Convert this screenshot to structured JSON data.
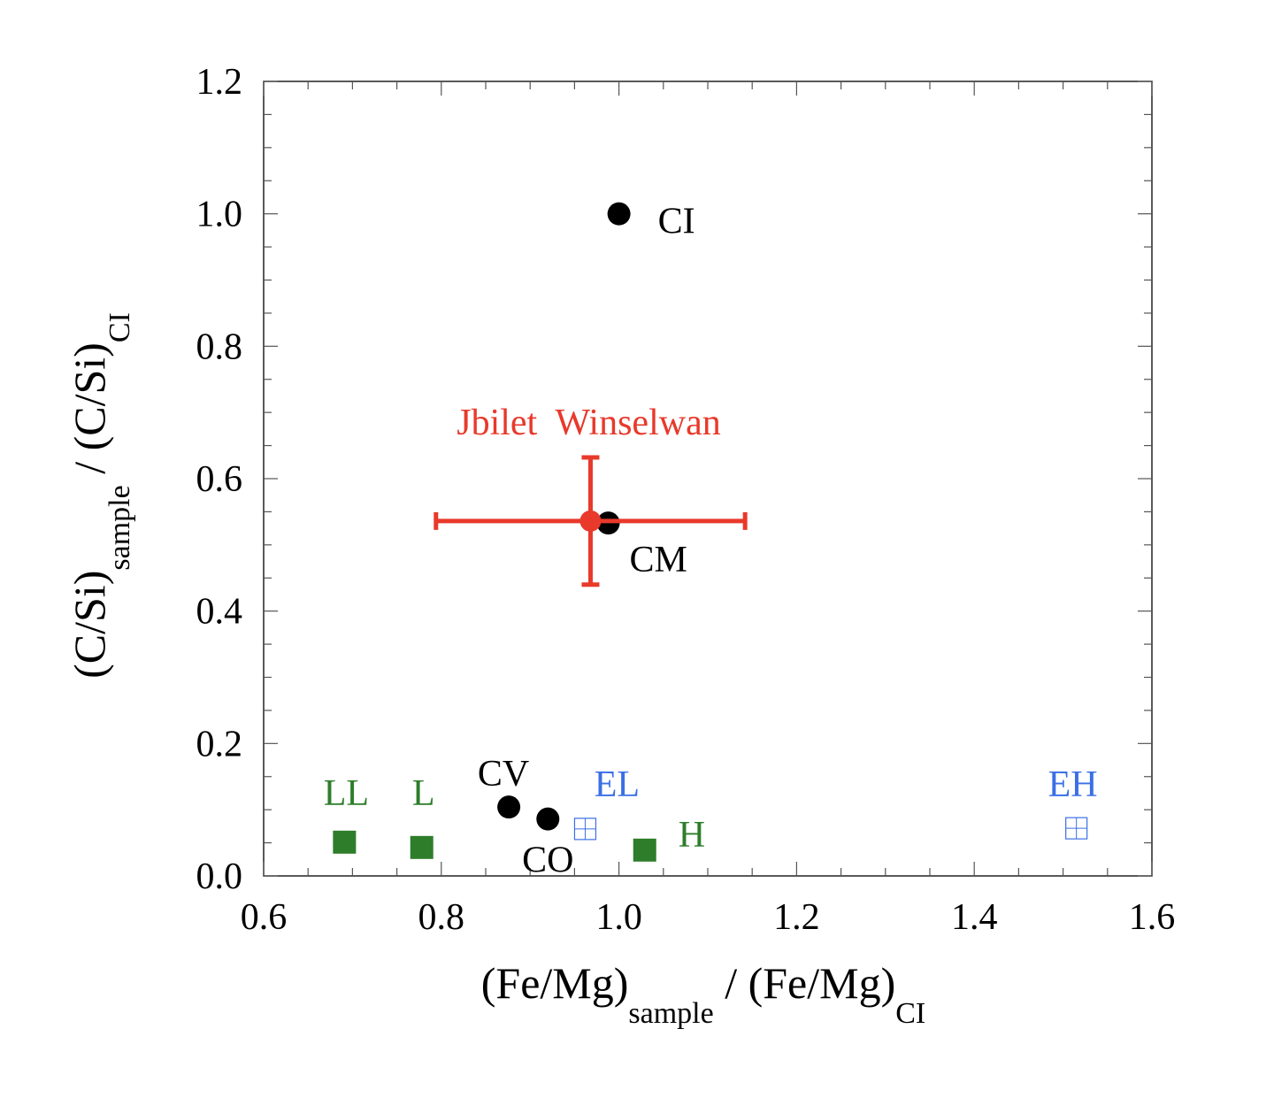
{
  "chart_data": {
    "type": "scatter",
    "title": "",
    "xlabel": {
      "main": "(Fe/Mg)",
      "sub1": "sample",
      "mid": " / (Fe/Mg)",
      "sub2": "CI"
    },
    "ylabel": {
      "main": "(C/Si)",
      "sub1": "sample",
      "mid": " / (C/Si)",
      "sub2": "CI"
    },
    "xlim": [
      0.6,
      1.6
    ],
    "ylim": [
      0.0,
      1.2
    ],
    "xticks": [
      "0.6",
      "0.8",
      "1.0",
      "1.2",
      "1.4",
      "1.6"
    ],
    "yticks": [
      "0.0",
      "0.2",
      "0.4",
      "0.6",
      "0.8",
      "1.0",
      "1.2"
    ],
    "grid": false,
    "colors": {
      "carbonaceous": "#000000",
      "ordinary": "#2e7d2b",
      "enstatite": "#3b6fe6",
      "sample": "#e8392b"
    },
    "points": [
      {
        "label": "CI",
        "x": 1.0,
        "y": 1.0,
        "marker": "circle",
        "group": "carbonaceous"
      },
      {
        "label": "CM",
        "x": 0.988,
        "y": 0.533,
        "marker": "circle",
        "group": "carbonaceous"
      },
      {
        "label": "CV",
        "x": 0.876,
        "y": 0.104,
        "marker": "circle",
        "group": "carbonaceous"
      },
      {
        "label": "CO",
        "x": 0.92,
        "y": 0.086,
        "marker": "circle",
        "group": "carbonaceous"
      },
      {
        "label": "LL",
        "x": 0.691,
        "y": 0.051,
        "marker": "square",
        "group": "ordinary"
      },
      {
        "label": "L",
        "x": 0.778,
        "y": 0.043,
        "marker": "square",
        "group": "ordinary"
      },
      {
        "label": "H",
        "x": 1.029,
        "y": 0.039,
        "marker": "square",
        "group": "ordinary"
      },
      {
        "label": "EL",
        "x": 0.962,
        "y": 0.071,
        "marker": "open-square-cross",
        "group": "enstatite"
      },
      {
        "label": "EH",
        "x": 1.515,
        "y": 0.072,
        "marker": "open-square-cross",
        "group": "enstatite"
      }
    ],
    "sample": {
      "label": "Jbilet  Winselwan",
      "x": 0.968,
      "y": 0.536,
      "xerr": [
        0.794,
        1.142
      ],
      "yerr": [
        0.44,
        0.632
      ]
    }
  }
}
